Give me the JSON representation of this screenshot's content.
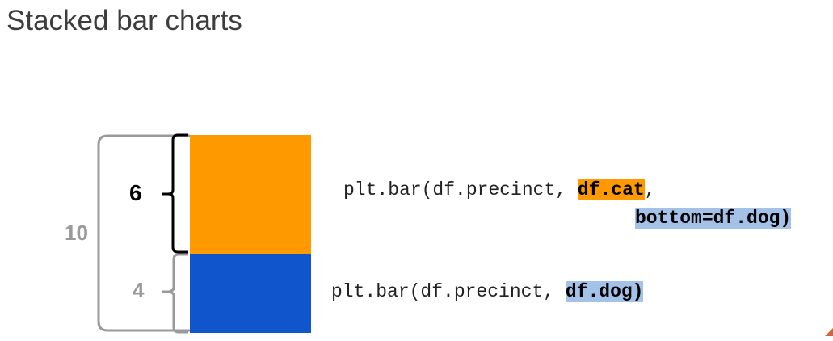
{
  "title": "Stacked bar charts",
  "labels": {
    "total": "10",
    "top_segment": "6",
    "bottom_segment": "4"
  },
  "code": {
    "cat_line_prefix": "plt.bar(df.precinct, ",
    "cat_arg": "df.cat",
    "cat_comma": ",",
    "bottom_arg": "bottom=df.dog)",
    "dog_line_prefix": "plt.bar(df.precinct, ",
    "dog_arg": "df.dog)"
  },
  "colors": {
    "cat_segment": "#ff9900",
    "dog_segment": "#1155cc",
    "cat_highlight": "#ff9900",
    "dog_highlight": "#a4c2e8",
    "total_bracket": "#9a9a9a",
    "top_bracket": "#000000",
    "bottom_bracket": "#9a9a9a"
  },
  "chart_data": {
    "type": "bar",
    "stacked": true,
    "categories": [
      ""
    ],
    "series": [
      {
        "values": [
          4
        ],
        "color": "#1155cc"
      },
      {
        "values": [
          6
        ],
        "color": "#ff9900"
      }
    ]
  }
}
